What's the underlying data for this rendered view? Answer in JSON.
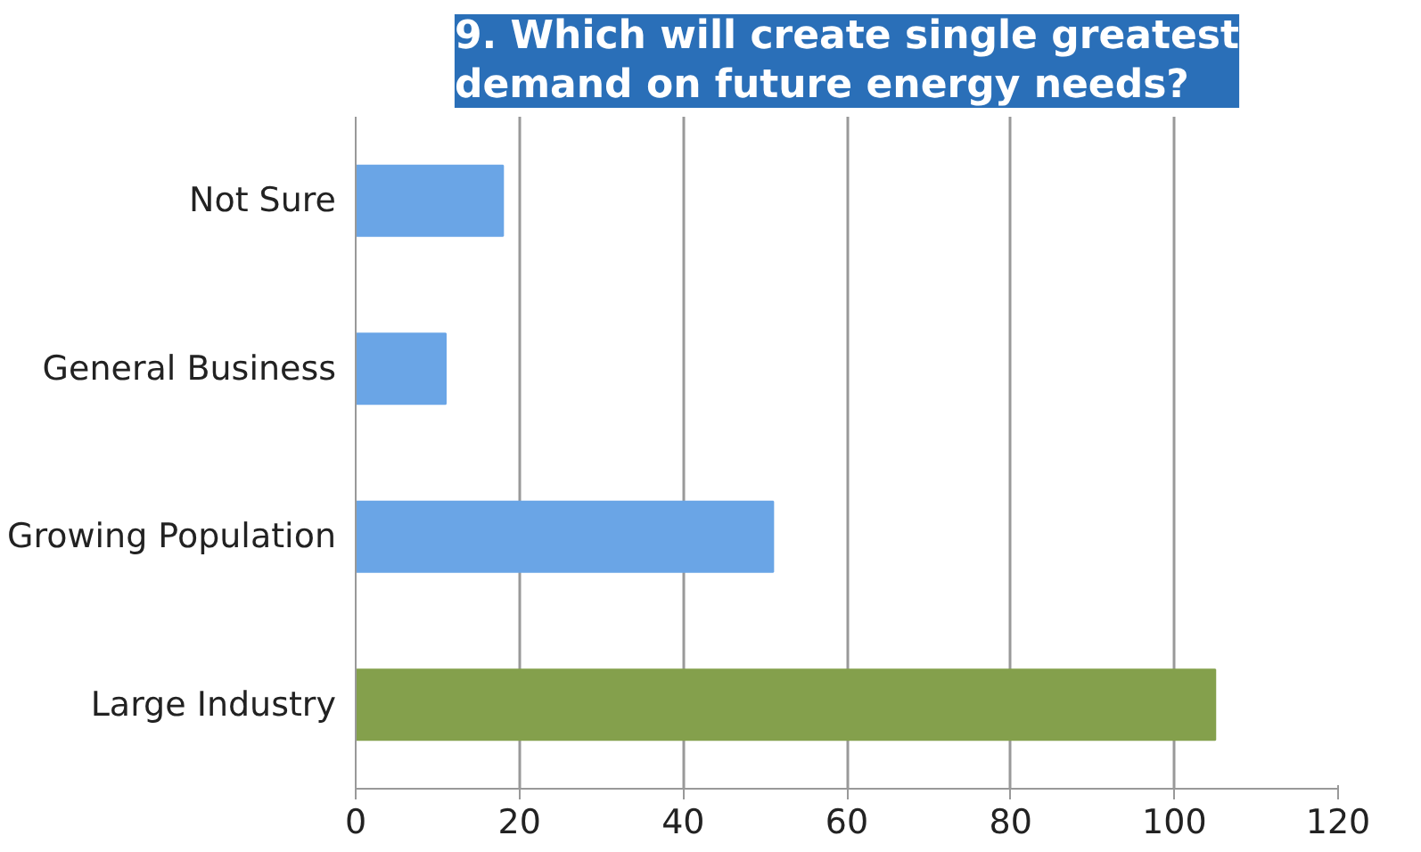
{
  "chart_data": {
    "type": "bar",
    "orientation": "horizontal",
    "title": "9. Which will create single greatest\ndemand on future energy needs?",
    "categories": [
      "Not Sure",
      "General Business",
      "Growing Population",
      "Large Industry"
    ],
    "values": [
      18,
      11,
      51,
      105
    ],
    "colors": [
      "#6aa5e6",
      "#6aa5e6",
      "#6aa5e6",
      "#84a04c"
    ],
    "xlim": [
      0,
      120
    ],
    "xticks": [
      0,
      20,
      40,
      60,
      80,
      100,
      120
    ],
    "grid": "x"
  }
}
